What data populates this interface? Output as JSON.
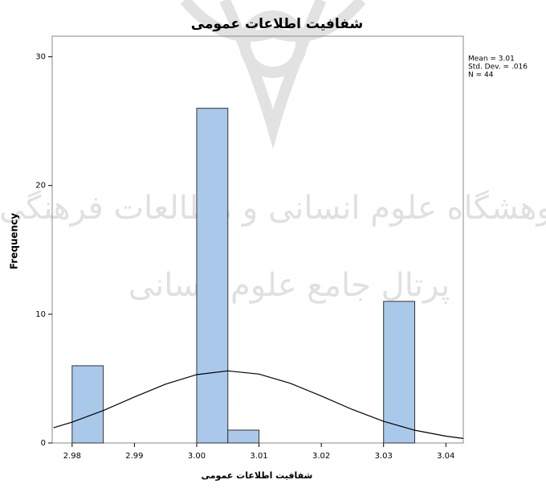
{
  "chart_data": {
    "type": "histogram",
    "title": "شفافيت اطلاعات عمومی",
    "x_label": "شفافيت اطلاعات عمومی",
    "y_label": "Frequency",
    "stats": [
      "Mean = 3.01",
      "Std. Dev. = .016",
      "N = 44"
    ],
    "watermark": [
      "پژوهشگاه علوم انسانی و مطالعات فرهنگی",
      "پرتال جامع علوم انسانی"
    ],
    "bins": [
      2.98,
      2.985,
      2.99,
      2.995,
      3,
      3.005,
      3.01,
      3.015,
      3.02,
      3.025,
      3.03,
      3.035
    ],
    "values": [
      6,
      0,
      0,
      0,
      26,
      1,
      0,
      0,
      0,
      0,
      11
    ],
    "color": "#aac8ea",
    "curve": {
      "x": [
        2.977,
        2.98,
        2.985,
        2.99,
        2.995,
        3,
        3.005,
        3.01,
        3.015,
        3.02,
        3.025,
        3.03,
        3.035,
        3.04,
        3.0428
      ],
      "values": [
        1.18,
        1.62,
        2.52,
        3.57,
        4.57,
        5.31,
        5.6,
        5.35,
        4.64,
        3.65,
        2.6,
        1.68,
        0.99,
        0.53,
        0.35
      ],
      "color": "#000000"
    },
    "xlim": [
      2.9768,
      3.0428
    ],
    "ylim": [
      0,
      31.6
    ],
    "xticks": [
      2.98,
      2.99,
      {
        "value": 3,
        "label": "3.00"
      },
      3.01,
      3.02,
      3.03,
      3.04
    ],
    "yticks": [
      0,
      10,
      20,
      30
    ]
  }
}
